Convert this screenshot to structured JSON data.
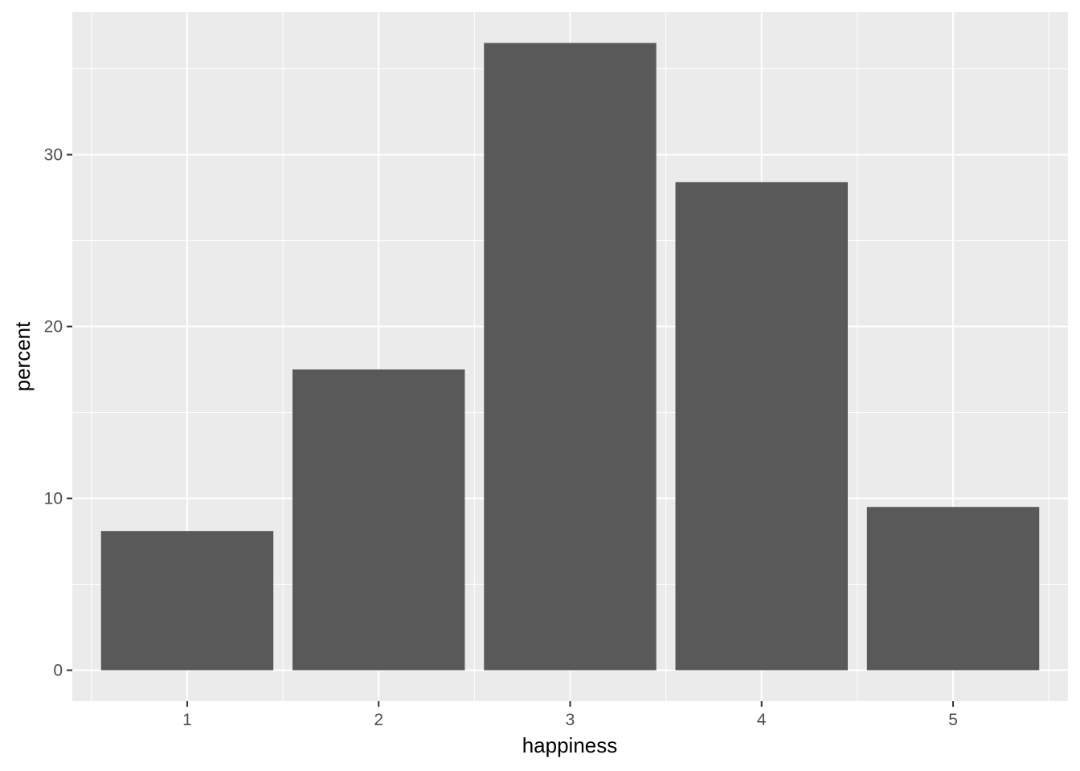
{
  "chart_data": {
    "type": "bar",
    "categories": [
      "1",
      "2",
      "3",
      "4",
      "5"
    ],
    "values": [
      8.1,
      17.5,
      36.5,
      28.4,
      9.5
    ],
    "title": "",
    "xlabel": "happiness",
    "ylabel": "percent",
    "ylim": [
      -1.8,
      38.3
    ],
    "y_ticks": [
      "0",
      "10",
      "20",
      "30"
    ],
    "y_tick_values": [
      0,
      10,
      20,
      30
    ],
    "y_minor_ticks": [
      5,
      15,
      25,
      35
    ],
    "grid": true,
    "legend": "none",
    "colors": {
      "panel_background": "#ebebeb",
      "grid": "#ffffff",
      "bar_fill": "#595959",
      "tick_text": "#4d4d4d",
      "tick_mark": "#333333"
    }
  }
}
